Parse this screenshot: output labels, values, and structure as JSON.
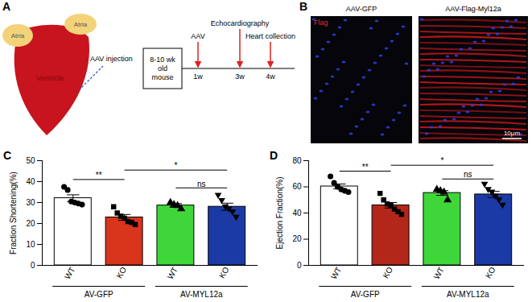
{
  "figure": {
    "panel_A": {
      "label": "A",
      "atria": [
        "Atria",
        "Atria"
      ],
      "ventricle": "Ventricle",
      "injection": "AAV injection",
      "start": "8-10 wk old mouse",
      "events": [
        {
          "week": "1w",
          "label": "AAV"
        },
        {
          "week": "3w",
          "label": "Echocardiography"
        },
        {
          "week": "4w",
          "label": "Heart collection"
        }
      ]
    },
    "panel_B": {
      "label": "B",
      "images": [
        "AAV-GFP",
        "AAV-Flag-Myl12a"
      ],
      "stain": "Flag",
      "scale_bar": "10μm"
    }
  },
  "chart_data": [
    {
      "type": "bar",
      "panel_label": "C",
      "ylabel": "Fraction Shortening(%)",
      "categories": [
        "WT",
        "KO",
        "WT",
        "KO"
      ],
      "group_labels": [
        "AV-GFP",
        "AV-GFP",
        "AV-MYL12a",
        "AV-MYL12a"
      ],
      "values": [
        32.1,
        22.9,
        28.6,
        28.0
      ],
      "errors": [
        1.6,
        1.4,
        0.9,
        1.7
      ],
      "points": [
        [
          37.5,
          36,
          30.5,
          30,
          29.5,
          29
        ],
        [
          28,
          25,
          23.5,
          22.5,
          21,
          20.5,
          19.5
        ],
        [
          30,
          29,
          28.5,
          27
        ],
        [
          33.5,
          31,
          28,
          27,
          25.5,
          23
        ]
      ],
      "colors": [
        "#ffffff",
        "#d9341c",
        "#3fd63a",
        "#1c3aa6"
      ],
      "markers": [
        "circle",
        "square",
        "triangle",
        "triangle-down"
      ],
      "ylim": [
        0,
        50
      ],
      "yticks": [
        0,
        10,
        20,
        30,
        40,
        50
      ],
      "annotations": [
        {
          "text": "**",
          "from": 0,
          "to": 1,
          "y": 41
        },
        {
          "text": "*",
          "from": 1,
          "to": 3,
          "y": 45.5
        },
        {
          "text": "ns",
          "from": 2,
          "to": 3,
          "y": 37
        }
      ]
    },
    {
      "type": "bar",
      "panel_label": "D",
      "ylabel": "Ejection Fraction(%)",
      "categories": [
        "WT",
        "KO",
        "WT",
        "KO"
      ],
      "group_labels": [
        "AV-GFP",
        "AV-GFP",
        "AV-MYL12a",
        "AV-MYL12a"
      ],
      "values": [
        60.3,
        45.9,
        55.3,
        54.2
      ],
      "errors": [
        1.9,
        2.1,
        1.8,
        2.3
      ],
      "points": [
        [
          68,
          63,
          60,
          58,
          57,
          56
        ],
        [
          55,
          50,
          47,
          46,
          43,
          41,
          39
        ],
        [
          58,
          57,
          56,
          50
        ],
        [
          62,
          58,
          56,
          53,
          50,
          46
        ]
      ],
      "colors": [
        "#ffffff",
        "#b3261a",
        "#3fd63a",
        "#1c3aa6"
      ],
      "markers": [
        "circle",
        "square",
        "triangle",
        "triangle-down"
      ],
      "ylim": [
        0,
        80
      ],
      "yticks": [
        0,
        20,
        40,
        60,
        80
      ],
      "annotations": [
        {
          "text": "**",
          "from": 0,
          "to": 1,
          "y": 72
        },
        {
          "text": "*",
          "from": 1,
          "to": 3,
          "y": 76.5
        },
        {
          "text": "ns",
          "from": 2,
          "to": 3,
          "y": 66
        }
      ]
    }
  ]
}
